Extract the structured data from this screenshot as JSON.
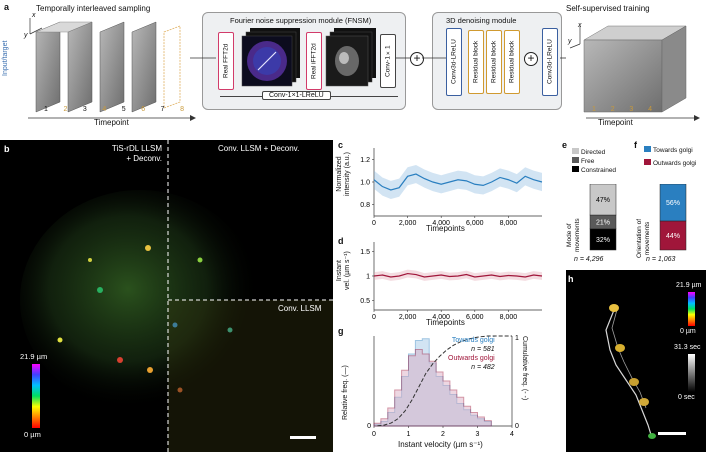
{
  "panel_a": {
    "letter": "a",
    "sampling_title": "Temporally interleaved sampling",
    "fnsm_title": "Fourier noise suppression module (FNSM)",
    "denoise_title": "3D denoising module",
    "train_title": "Self-supervised training",
    "input_label": "Input/target",
    "timepoint_label": "Timepoint",
    "tick_numbers": [
      "1",
      "2",
      "3",
      "4",
      "5",
      "6",
      "7",
      "8"
    ],
    "axis_x": "x",
    "axis_y": "y",
    "fft_left": "Real FFT2d",
    "fft_right": "Real iFFT2d",
    "conv1x1": "Conv-1×1",
    "conv_lrelu_bottom": "Conv-1×1-LReLU",
    "conv3d_left": "Conv3d-LReLU",
    "resblock": "Residual block",
    "conv3d_right": "Conv3d-LReLU",
    "right_ticks": [
      "1",
      "2",
      "3",
      "4"
    ]
  },
  "panel_b": {
    "letter": "b",
    "label_tl": "TiS-rDL LLSM + Deconv.",
    "label_tl_line1": "TiS-rDL LLSM",
    "label_tl_line2": "+ Deconv.",
    "label_tr": "Conv. LLSM + Deconv.",
    "label_br": "Conv. LLSM",
    "cbar_top": "21.9 µm",
    "cbar_bottom": "0 µm"
  },
  "panel_c": {
    "letter": "c",
    "ylabel_1": "Normalized",
    "ylabel_2": "intensity (a.u.)",
    "xlabel": "Timepoints",
    "yticks": [
      "1.2",
      "1.0",
      "0.8"
    ],
    "xticks": [
      "0",
      "2,000",
      "4,000",
      "6,000",
      "8,000"
    ]
  },
  "panel_d": {
    "letter": "d",
    "ylabel_1": "Instant",
    "ylabel_2": "vel. (µm s⁻¹)",
    "xlabel": "Timepoints",
    "yticks": [
      "1.5",
      "1",
      "0.5"
    ],
    "xticks": [
      "0",
      "2,000",
      "4,000",
      "6,000",
      "8,000"
    ]
  },
  "panel_e": {
    "letter": "e",
    "legend": [
      "Directed",
      "Free",
      "Constrained"
    ],
    "ylabel_1": "Mode of",
    "ylabel_2": "movements",
    "pcts": [
      "47%",
      "21%",
      "32%"
    ],
    "n": "n = 4,296",
    "colors": {
      "directed": "#c8c8c8",
      "free": "#5a5a5a",
      "constrained": "#000000"
    }
  },
  "panel_f": {
    "letter": "f",
    "legend": [
      "Towards golgi",
      "Outwards golgi"
    ],
    "ylabel_1": "Orientation of",
    "ylabel_2": "movements",
    "pcts": [
      "56%",
      "44%"
    ],
    "n": "n = 1,063",
    "colors": {
      "towards": "#2a7fc0",
      "outwards": "#a0163a"
    }
  },
  "panel_g": {
    "letter": "g",
    "ylabel_left": "Relative freq. (—)",
    "ylabel_right": "Cumulative freq. (- -)",
    "xlabel": "Instant velocity (µm s⁻¹)",
    "legend_towards": "Towards golgi",
    "n_towards": "n = 581",
    "legend_outwards": "Outwards golgi",
    "n_outwards": "n = 482",
    "yticks_left": [
      "0",
      "0"
    ],
    "xticks": [
      "0",
      "1",
      "2",
      "3",
      "4"
    ],
    "yticks_right": [
      "1",
      "0"
    ]
  },
  "panel_h": {
    "letter": "h",
    "cbar1_top": "21.9 µm",
    "cbar1_bottom": "0 µm",
    "cbar2_top": "31.3 sec",
    "cbar2_bottom": "0 sec"
  },
  "chart_data": [
    {
      "type": "line",
      "panel": "c",
      "ylim": [
        0.7,
        1.3
      ],
      "xlim": [
        0,
        10000
      ],
      "color": "#2a7fc0",
      "x": [
        0,
        500,
        1000,
        1500,
        2000,
        2500,
        3000,
        3500,
        4000,
        4500,
        5000,
        5500,
        6000,
        6500,
        7000,
        7500,
        8000,
        8500,
        9000,
        9500,
        10000
      ],
      "y": [
        1.02,
        0.96,
        0.93,
        0.95,
        1.05,
        1.07,
        1.03,
        1.0,
        0.98,
        1.0,
        1.02,
        1.01,
        0.98,
        0.97,
        1.0,
        1.04,
        1.02,
        0.99,
        1.05,
        1.02,
        1.0
      ]
    },
    {
      "type": "line",
      "panel": "d",
      "ylim": [
        0.3,
        1.7
      ],
      "xlim": [
        0,
        10000
      ],
      "color": "#a0163a",
      "x": [
        0,
        500,
        1000,
        1500,
        2000,
        2500,
        3000,
        3500,
        4000,
        4500,
        5000,
        5500,
        6000,
        6500,
        7000,
        7500,
        8000,
        8500,
        9000,
        9500,
        10000
      ],
      "y": [
        1.0,
        1.02,
        0.98,
        1.0,
        1.05,
        1.03,
        0.98,
        1.0,
        1.02,
        0.99,
        1.0,
        1.03,
        0.98,
        1.0,
        1.02,
        0.99,
        1.01,
        1.0,
        0.98,
        1.02,
        1.0
      ]
    },
    {
      "type": "bar",
      "panel": "e",
      "categories": [
        "Constrained",
        "Free",
        "Directed"
      ],
      "values": [
        32,
        21,
        47
      ]
    },
    {
      "type": "bar",
      "panel": "f",
      "categories": [
        "Outwards golgi",
        "Towards golgi"
      ],
      "values": [
        44,
        56
      ]
    },
    {
      "type": "bar",
      "panel": "g",
      "xlim": [
        0,
        4
      ],
      "x": [
        0.1,
        0.3,
        0.5,
        0.7,
        0.9,
        1.1,
        1.3,
        1.5,
        1.7,
        1.9,
        2.1,
        2.3,
        2.5,
        2.7,
        2.9,
        3.1,
        3.3
      ],
      "series": [
        {
          "name": "Towards golgi",
          "values": [
            0.02,
            0.05,
            0.15,
            0.32,
            0.55,
            0.8,
            0.95,
            0.97,
            0.7,
            0.55,
            0.45,
            0.35,
            0.25,
            0.18,
            0.12,
            0.08,
            0.05
          ]
        },
        {
          "name": "Outwards golgi",
          "values": [
            0.03,
            0.08,
            0.2,
            0.4,
            0.62,
            0.78,
            0.85,
            0.8,
            0.72,
            0.6,
            0.5,
            0.4,
            0.32,
            0.22,
            0.15,
            0.1,
            0.06
          ]
        }
      ]
    }
  ]
}
